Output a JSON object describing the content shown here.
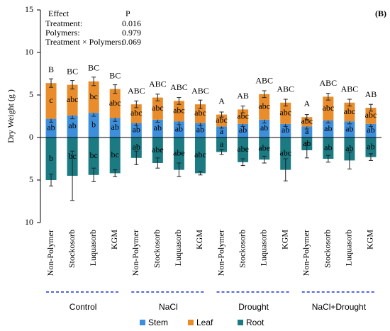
{
  "chart_data": {
    "type": "bar",
    "panel_label": "(B)",
    "y_label": "Dry Weight (g )",
    "categories": [
      "Non-Polymer",
      "Stockosorb",
      "Luquasorb",
      "KGM",
      "Non-Polymer",
      "Stockosorb",
      "Luquasorb",
      "KGM",
      "Non-Polymer",
      "Stockosorb",
      "Luquasorb",
      "KGM",
      "Non-Polymer",
      "Stockosorb",
      "Luquasorb",
      "KGM"
    ],
    "groups": [
      "Control",
      "NaCl",
      "Drought",
      "NaCl+Drought"
    ],
    "series": [
      {
        "name": "Stem",
        "color": "#3d8edb",
        "label_color": "#ffffff",
        "values": [
          2.2,
          2.6,
          2.9,
          2.3,
          1.7,
          2.1,
          1.9,
          1.7,
          1.3,
          1.6,
          2.1,
          1.6,
          1.3,
          2.0,
          1.9,
          1.6
        ],
        "errors": [
          0.4,
          0.4,
          0.4,
          0.4,
          0.3,
          0.3,
          0.4,
          0.3,
          0.2,
          0.3,
          0.4,
          0.3,
          0.3,
          0.3,
          0.3,
          0.3
        ],
        "labels": [
          "ab",
          "ab",
          "b",
          "ab",
          "ab",
          "ab",
          "ab",
          "ab",
          "a",
          "ab",
          "ab",
          "ab",
          "a",
          "ab",
          "ab",
          "ab"
        ]
      },
      {
        "name": "Leaf",
        "color": "#e88c2c",
        "label_color": "#7030a0",
        "values": [
          4.2,
          3.6,
          3.7,
          3.4,
          2.2,
          2.6,
          2.4,
          2.2,
          1.4,
          1.7,
          3.0,
          2.5,
          1.1,
          2.8,
          2.2,
          1.9
        ],
        "errors": [
          0.5,
          0.5,
          0.5,
          0.5,
          0.4,
          0.4,
          0.4,
          0.5,
          0.3,
          0.4,
          0.4,
          0.4,
          0.3,
          0.4,
          0.4,
          0.4
        ],
        "labels": [
          "c",
          "abc",
          "bc",
          "abc",
          "abc",
          "abc",
          "abc",
          "abc",
          "abc",
          "abc",
          "abc",
          "abc",
          "abc",
          "abc",
          "abc",
          "abc"
        ]
      },
      {
        "name": "Root",
        "color": "#1b7a82",
        "label_color": "#ffffff",
        "values": [
          -5.0,
          -4.5,
          -4.4,
          -4.2,
          -2.4,
          -3.0,
          -3.8,
          -4.2,
          -1.7,
          -2.9,
          -2.6,
          -3.8,
          -1.5,
          -2.5,
          -2.7,
          -2.3
        ],
        "errors": [
          0.7,
          2.9,
          0.8,
          0.4,
          0.8,
          0.6,
          0.8,
          0.2,
          0.3,
          0.4,
          0.4,
          1.3,
          0.9,
          0.4,
          1.0,
          0.4
        ],
        "labels": [
          "b",
          "bc",
          "bc",
          "bc",
          "ab",
          "abe",
          "abe",
          "abc",
          "a",
          "abe",
          "abe",
          "abc",
          "ab",
          "ab",
          "ab",
          "ab"
        ]
      }
    ],
    "group_letters": [
      "B",
      "BC",
      "BC",
      "BC",
      "ABC",
      "ABC",
      "ABC",
      "ABC",
      "A",
      "AB",
      "ABC",
      "ABC",
      "A",
      "ABC",
      "ABC",
      "AB"
    ],
    "annotation": {
      "header": [
        "Effect",
        "P"
      ],
      "rows": [
        [
          "Treatment:",
          "0.016"
        ],
        [
          "Polymers:",
          "0.979"
        ],
        [
          "Treatment × Polymers:",
          "0.069"
        ]
      ]
    },
    "ylim": [
      -10,
      15
    ],
    "yticks": [
      {
        "value": -10,
        "label": "10"
      },
      {
        "value": -5,
        "label": "5"
      },
      0,
      5,
      10,
      15
    ]
  }
}
